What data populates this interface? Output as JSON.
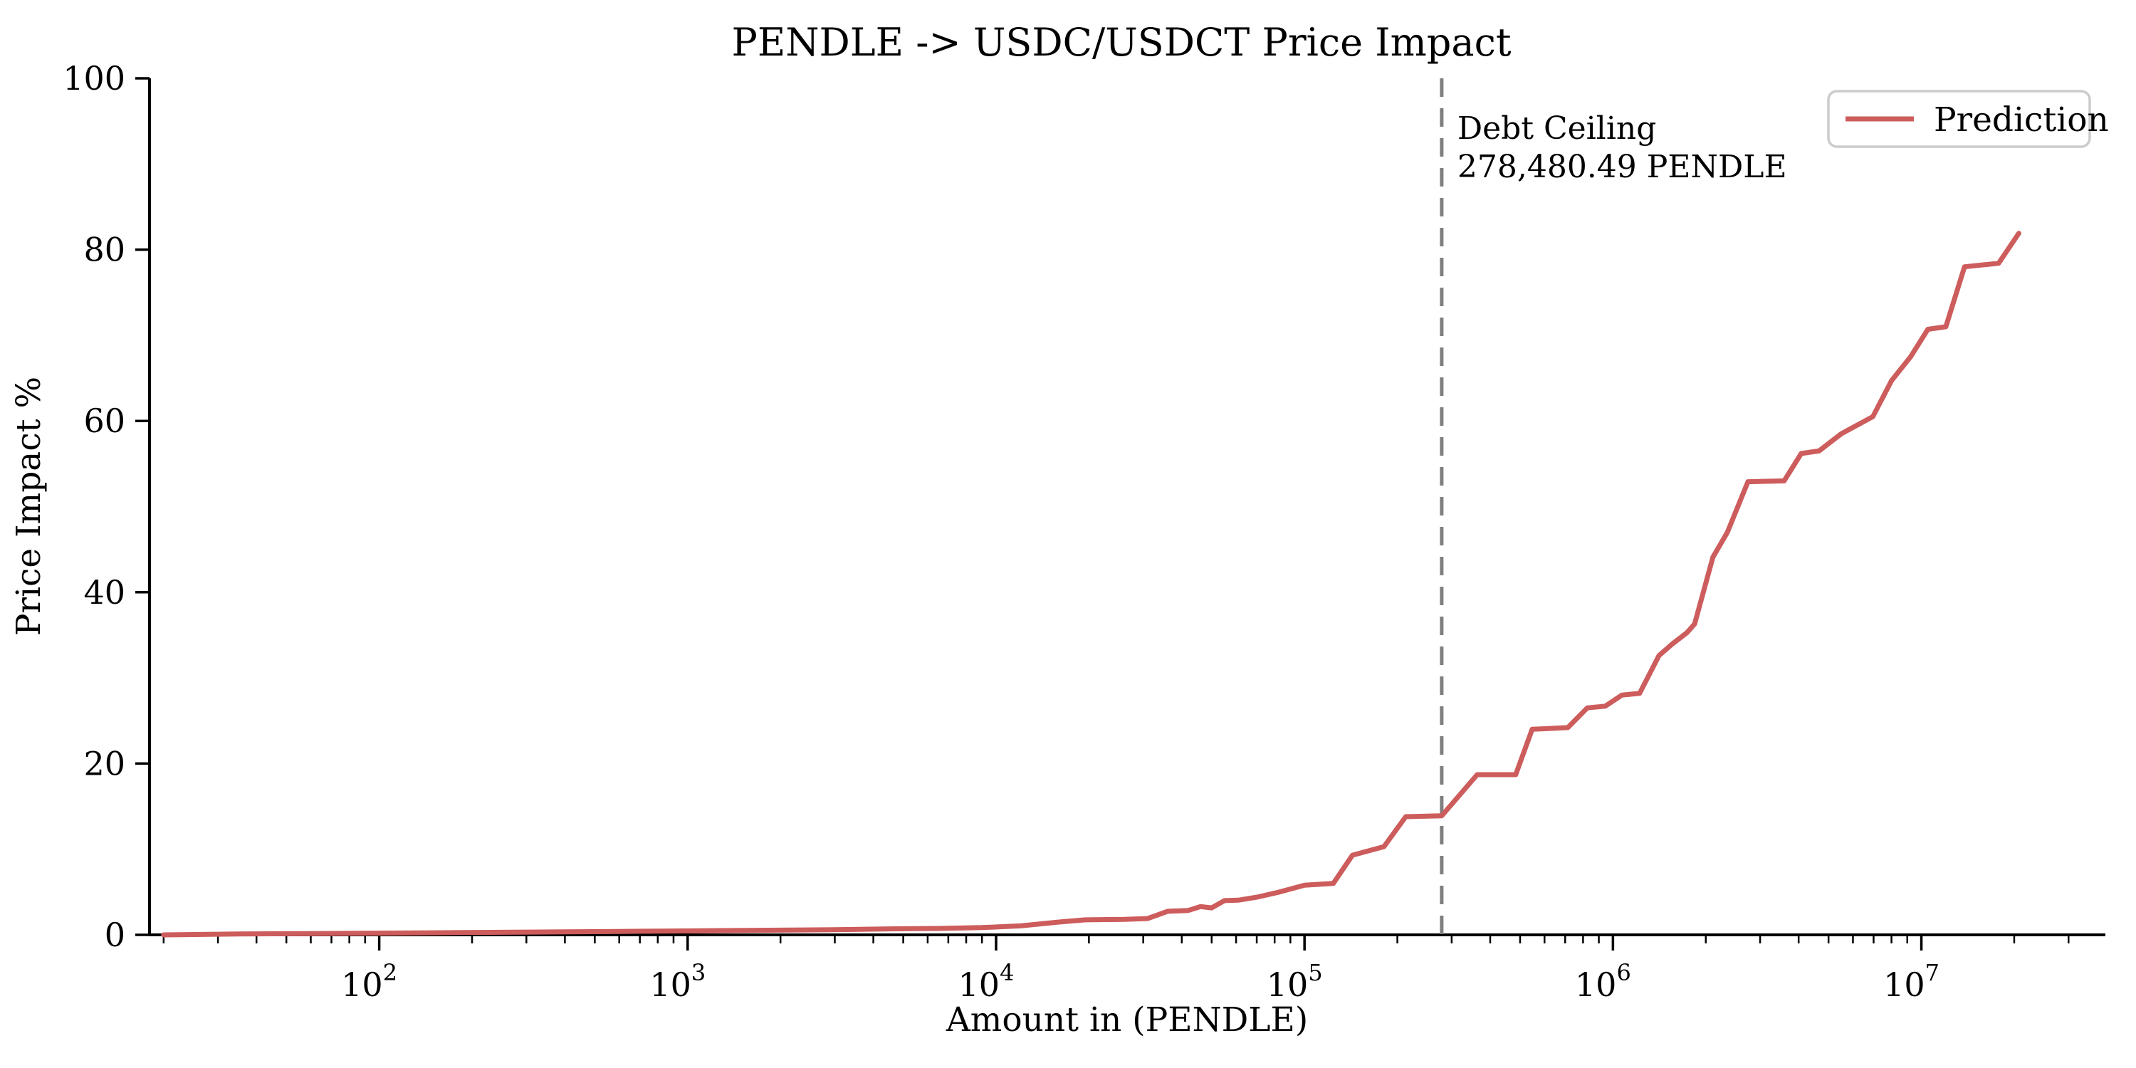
{
  "figure": {
    "background": "#ffffff",
    "text_color": "#000000"
  },
  "chart_data": {
    "type": "line",
    "title": "PENDLE -> USDC/USDCT Price Impact",
    "xlabel": "Amount in (PENDLE)",
    "ylabel": "Price Impact %",
    "x_scale": "log",
    "grid": false,
    "xlim": [
      18,
      39500000
    ],
    "ylim": [
      0,
      100
    ],
    "y_ticks": [
      0,
      20,
      40,
      60,
      80,
      100
    ],
    "x_tick_exponents": [
      2,
      3,
      4,
      5,
      6,
      7
    ],
    "line_color": "#cd5c5c",
    "line_width": 7,
    "legend": {
      "position": "upper right",
      "entries": [
        "Prediction"
      ],
      "border_color": "#cccccc"
    },
    "debt_ceiling": {
      "x": 278480.49,
      "label_line1": "Debt Ceiling",
      "label_line2": "278,480.49 PENDLE",
      "line_color": "#7f7f7f",
      "style": "dashed"
    },
    "series": [
      {
        "name": "Prediction",
        "points": [
          [
            20,
            0.0
          ],
          [
            35,
            0.1
          ],
          [
            60,
            0.15
          ],
          [
            100,
            0.2
          ],
          [
            160,
            0.25
          ],
          [
            250,
            0.3
          ],
          [
            400,
            0.35
          ],
          [
            600,
            0.4
          ],
          [
            900,
            0.45
          ],
          [
            1300,
            0.5
          ],
          [
            2000,
            0.55
          ],
          [
            3000,
            0.6
          ],
          [
            4500,
            0.7
          ],
          [
            6500,
            0.75
          ],
          [
            9000,
            0.85
          ],
          [
            12000,
            1.05
          ],
          [
            16000,
            1.5
          ],
          [
            19500,
            1.75
          ],
          [
            26000,
            1.8
          ],
          [
            31000,
            1.9
          ],
          [
            36000,
            2.75
          ],
          [
            42000,
            2.85
          ],
          [
            46000,
            3.3
          ],
          [
            50000,
            3.15
          ],
          [
            55000,
            4.0
          ],
          [
            61000,
            4.05
          ],
          [
            70000,
            4.4
          ],
          [
            83000,
            5.0
          ],
          [
            100000,
            5.8
          ],
          [
            124000,
            6.0
          ],
          [
            143000,
            9.3
          ],
          [
            181000,
            10.3
          ],
          [
            213000,
            13.8
          ],
          [
            278480,
            13.9
          ],
          [
            363000,
            18.7
          ],
          [
            484000,
            18.7
          ],
          [
            547000,
            24.0
          ],
          [
            714000,
            24.2
          ],
          [
            826000,
            26.5
          ],
          [
            944000,
            26.7
          ],
          [
            1070000,
            28.0
          ],
          [
            1220000,
            28.2
          ],
          [
            1410000,
            32.6
          ],
          [
            1550000,
            33.9
          ],
          [
            1740000,
            35.3
          ],
          [
            1840000,
            36.3
          ],
          [
            2110000,
            44.1
          ],
          [
            2350000,
            47.0
          ],
          [
            2740000,
            52.9
          ],
          [
            3590000,
            53.0
          ],
          [
            4080000,
            56.2
          ],
          [
            4660000,
            56.5
          ],
          [
            5500000,
            58.5
          ],
          [
            6960000,
            60.5
          ],
          [
            8000000,
            64.7
          ],
          [
            9230000,
            67.5
          ],
          [
            10500000,
            70.7
          ],
          [
            12000000,
            71.0
          ],
          [
            13800000,
            78.0
          ],
          [
            17800000,
            78.4
          ],
          [
            20700000,
            81.9
          ]
        ]
      }
    ]
  }
}
